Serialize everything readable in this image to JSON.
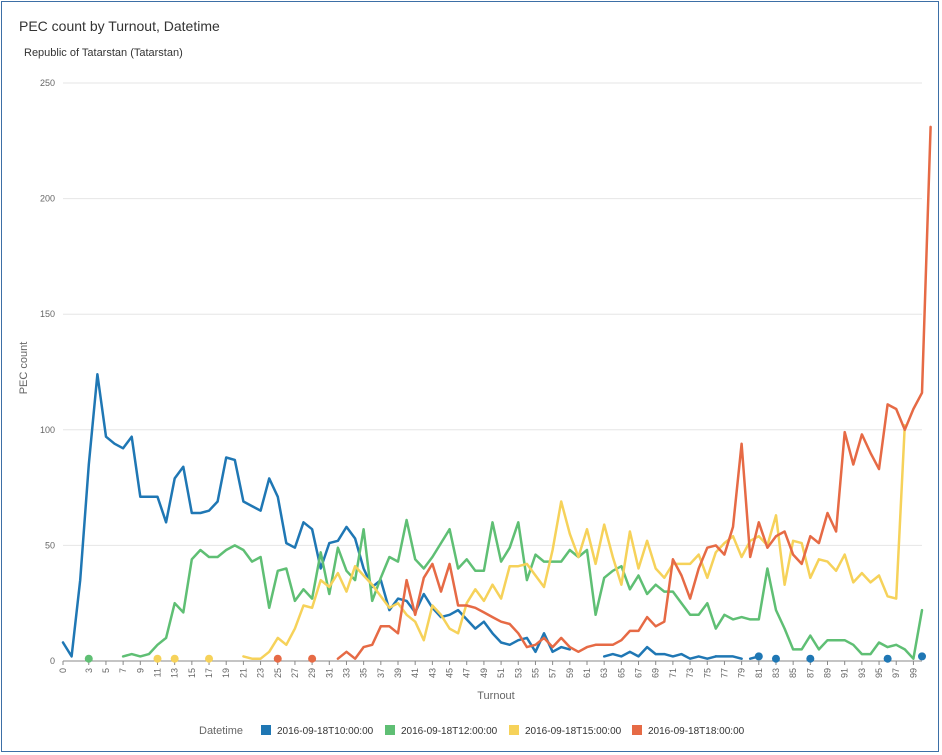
{
  "chart_data": {
    "type": "line",
    "title": "PEC count by Turnout, Datetime",
    "subtitle": "Republic of Tatarstan (Tatarstan)",
    "xlabel": "Turnout",
    "ylabel": "PEC count",
    "xlim": [
      0,
      100
    ],
    "ylim": [
      0,
      250
    ],
    "y_ticks": [
      0,
      50,
      100,
      150,
      200,
      250
    ],
    "x_ticks": [
      0,
      3,
      5,
      7,
      9,
      11,
      13,
      15,
      17,
      19,
      21,
      23,
      25,
      27,
      29,
      31,
      33,
      35,
      37,
      39,
      41,
      43,
      45,
      47,
      49,
      51,
      53,
      55,
      57,
      59,
      61,
      63,
      65,
      67,
      69,
      71,
      73,
      75,
      77,
      79,
      81,
      83,
      85,
      87,
      89,
      91,
      93,
      95,
      97,
      99
    ],
    "grid": true,
    "legend_title": "Datetime",
    "legend_position": "bottom",
    "series": [
      {
        "name": "2016-09-18T10:00:00",
        "color": "#1f77b4",
        "values": [
          8,
          2,
          35,
          85,
          124,
          97,
          94,
          92,
          97,
          71,
          71,
          71,
          60,
          79,
          84,
          64,
          64,
          65,
          69,
          88,
          87,
          69,
          67,
          65,
          79,
          71,
          51,
          49,
          60,
          57,
          40,
          51,
          52,
          58,
          53,
          40,
          32,
          35,
          22,
          27,
          26,
          21,
          29,
          23,
          19,
          20,
          22,
          18,
          14,
          17,
          12,
          8,
          7,
          9,
          10,
          4,
          12,
          4,
          6,
          5,
          null,
          null,
          null,
          2,
          3,
          2,
          4,
          2,
          6,
          3,
          3,
          2,
          3,
          1,
          2,
          1,
          2,
          null,
          null,
          null,
          null,
          null,
          null,
          null,
          null,
          null,
          null,
          null,
          null,
          null,
          null,
          null,
          null,
          null,
          null,
          null,
          null,
          null,
          null,
          null,
          null
        ],
        "segments": [
          {
            "x": 76,
            "values": [
              2,
              2,
              2,
              1
            ]
          },
          {
            "x": 80,
            "values": [
              1,
              2
            ]
          }
        ],
        "points": [
          {
            "x": 81,
            "y": 2
          },
          {
            "x": 83,
            "y": 1
          },
          {
            "x": 87,
            "y": 1
          },
          {
            "x": 96,
            "y": 1
          },
          {
            "x": 100,
            "y": 2
          }
        ]
      },
      {
        "name": "2016-09-18T12:00:00",
        "color": "#5fbf74",
        "values": [
          null,
          null,
          null,
          null,
          null,
          null,
          null,
          2,
          3,
          2,
          3,
          7,
          10,
          25,
          21,
          44,
          48,
          45,
          45,
          48,
          50,
          48,
          43,
          45,
          23,
          39,
          40,
          26,
          31,
          27,
          47,
          29,
          49,
          39,
          35,
          57,
          26,
          36,
          45,
          43,
          61,
          44,
          40,
          45,
          51,
          57,
          40,
          44,
          39,
          39,
          60,
          43,
          49,
          60,
          35,
          46,
          43,
          43,
          43,
          48,
          45,
          48,
          20,
          36,
          39,
          41,
          31,
          37,
          29,
          33,
          30,
          30,
          25,
          20,
          20,
          25,
          14,
          20,
          18,
          19,
          18,
          18,
          40,
          22,
          14,
          5,
          5,
          11,
          5,
          9,
          9,
          9,
          7,
          3,
          3,
          8,
          6,
          7,
          5,
          1,
          22
        ],
        "segments": [],
        "points": [
          {
            "x": 3,
            "y": 1
          }
        ]
      },
      {
        "name": "2016-09-18T15:00:00",
        "color": "#f6d25a",
        "values": [
          null,
          null,
          null,
          null,
          null,
          null,
          null,
          null,
          null,
          null,
          null,
          null,
          null,
          null,
          null,
          null,
          null,
          null,
          null,
          null,
          null,
          2,
          1,
          1,
          4,
          10,
          7,
          14,
          24,
          23,
          35,
          32,
          38,
          30,
          41,
          37,
          33,
          28,
          23,
          25,
          20,
          17,
          9,
          24,
          20,
          14,
          12,
          25,
          31,
          26,
          33,
          27,
          41,
          41,
          42,
          37,
          32,
          48,
          69,
          55,
          45,
          57,
          42,
          59,
          45,
          33,
          56,
          40,
          52,
          40,
          36,
          42,
          42,
          42,
          46,
          36,
          47,
          51,
          54,
          45,
          52,
          54,
          50,
          63,
          33,
          52,
          51,
          36,
          44,
          43,
          39,
          46,
          34,
          38,
          34,
          37,
          28,
          27,
          102
        ],
        "segments": [],
        "points": [
          {
            "x": 11,
            "y": 1
          },
          {
            "x": 13,
            "y": 1
          },
          {
            "x": 17,
            "y": 1
          }
        ]
      },
      {
        "name": "2016-09-18T18:00:00",
        "color": "#e66a45",
        "values": [
          9,
          null,
          null,
          null,
          null,
          null,
          null,
          null,
          null,
          null,
          null,
          null,
          null,
          null,
          null,
          null,
          null,
          null,
          null,
          null,
          null,
          null,
          null,
          null,
          null,
          null,
          null,
          null,
          null,
          null,
          null,
          null,
          1,
          4,
          1,
          6,
          7,
          15,
          15,
          12,
          35,
          20,
          36,
          42,
          30,
          42,
          24,
          24,
          23,
          21,
          19,
          17,
          16,
          12,
          6,
          7,
          10,
          6,
          10,
          6,
          4,
          6,
          7,
          7,
          7,
          9,
          13,
          13,
          19,
          15,
          17,
          44,
          37,
          27,
          40,
          49,
          50,
          46,
          58,
          94,
          45,
          60,
          49,
          54,
          56,
          46,
          42,
          54,
          51,
          64,
          56,
          99,
          85,
          98,
          90,
          83,
          111,
          109,
          100,
          109,
          116,
          231
        ],
        "segments": [],
        "points": [
          {
            "x": 25,
            "y": 1
          },
          {
            "x": 29,
            "y": 1
          }
        ]
      }
    ]
  }
}
